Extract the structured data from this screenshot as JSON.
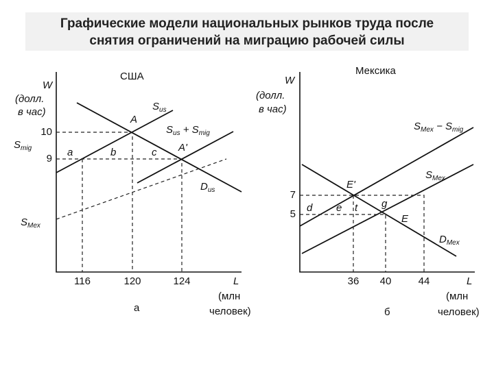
{
  "title": [
    "Графические модели национальных рынков труда после",
    "снятия ограничений на миграцию рабочей силы"
  ],
  "panels": [
    {
      "heading": "США",
      "axis_y": "W",
      "axis_y_unit": [
        "(долл.",
        "в час)"
      ],
      "axis_x": "L",
      "axis_x_unit": [
        "(млн",
        "человек)"
      ],
      "caption": "а",
      "y_ticks": [
        10,
        9
      ],
      "x_ticks": [
        116,
        120,
        124
      ],
      "labels": [
        [
          "S",
          "us"
        ],
        [
          "A"
        ],
        [
          "S",
          "us",
          " + S",
          "mig"
        ],
        [
          "A'"
        ],
        [
          "D",
          "us"
        ],
        [
          "S",
          "mig"
        ],
        [
          "a"
        ],
        [
          "b"
        ],
        [
          "c"
        ],
        [
          "S",
          "Mex"
        ]
      ]
    },
    {
      "heading": "Мексика",
      "axis_y": "W",
      "axis_y_unit": [
        "(долл.",
        "в час)"
      ],
      "axis_x": "L",
      "axis_x_unit": [
        "(млн",
        "человек)"
      ],
      "caption": "б",
      "y_ticks": [
        7,
        5
      ],
      "x_ticks": [
        36,
        40,
        44
      ],
      "labels": [
        [
          "S",
          "Mex",
          " − S",
          "mig"
        ],
        [
          "S",
          "Mex"
        ],
        [
          "E'"
        ],
        [
          "g"
        ],
        [
          "d"
        ],
        [
          "e"
        ],
        [
          "t"
        ],
        [
          "E"
        ],
        [
          "D",
          "Mex"
        ]
      ]
    }
  ]
}
